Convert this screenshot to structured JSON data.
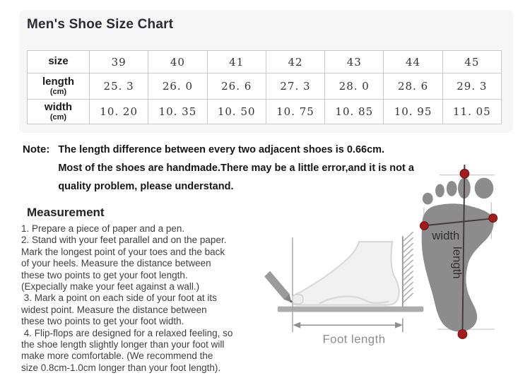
{
  "title": "Men's Shoe Size Chart",
  "table": {
    "rows": [
      {
        "label": "size",
        "unit": "",
        "values": [
          "39",
          "40",
          "41",
          "42",
          "43",
          "44",
          "45"
        ]
      },
      {
        "label": "length",
        "unit": "(cm)",
        "values": [
          "25. 3",
          "26. 0",
          "26. 6",
          "27. 3",
          "28. 0",
          "28. 6",
          "29. 3"
        ]
      },
      {
        "label": "width",
        "unit": "(cm)",
        "values": [
          "10. 20",
          "10. 35",
          "10. 50",
          "10. 75",
          "10. 85",
          "10. 95",
          "11. 05"
        ]
      }
    ]
  },
  "note": {
    "label": "Note:",
    "lines": [
      "The length difference between every two adjacent shoes is 0.66cm.",
      "Most of the shoes are handmade.There may be a little error,and it is not a",
      "quality problem, please understand."
    ]
  },
  "measurement": {
    "heading": "Measurement",
    "instructions": [
      "1. Prepare a piece of paper and a pen.",
      "2. Stand with your feet parallel and on the paper.",
      "Mark the longest point of your toes and the back",
      "of your heels. Measure the distance between",
      "these two points to get your foot length.",
      "(Expecially make your feet against a wall.)",
      " 3. Mark a point on each side of your foot at its",
      "widest point. Measure the distance between",
      "these two points to get your foot width.",
      " 4. Flip-flops are designed for a relaxed feeling, so",
      "the shoe length slightly longer than your foot will",
      "make more comfortable. (We recommend the",
      "size 0.8cm-1.0cm longer than your foot length)."
    ]
  },
  "diagram": {
    "foot_length_label": "Foot length",
    "width_label": "width",
    "length_label": "length",
    "footprint_color": "#8c8c8c",
    "marker_color": "#a31b1b",
    "measure_line_color": "#443b3b",
    "arrow_color": "#8f8f8f"
  }
}
